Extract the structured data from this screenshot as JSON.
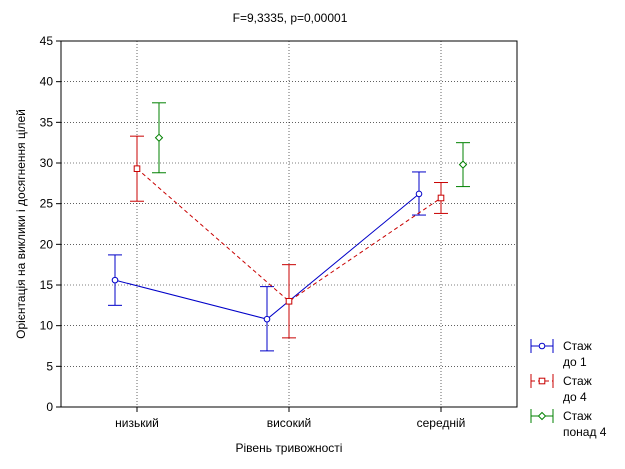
{
  "chart_data": {
    "type": "line",
    "title": "F=9,3335, p=0,00001",
    "xlabel": "Рівень тривожності",
    "ylabel": "Орієнтація на виклики і досягнення цілей",
    "ylim": [
      0,
      45
    ],
    "yticks": [
      "0",
      "5",
      "10",
      "15",
      "20",
      "25",
      "30",
      "35",
      "40",
      "45"
    ],
    "categories": [
      "низький",
      "високий",
      "середній"
    ],
    "legend_position": "right",
    "series": [
      {
        "name": "Стаж до 1",
        "legend_lines": [
          "Стаж",
          "до 1"
        ],
        "color": "#0000c8",
        "marker": "circle",
        "dashed": false,
        "values": [
          15.6,
          10.8,
          26.2
        ],
        "lower": [
          12.5,
          6.9,
          23.6
        ],
        "upper": [
          18.7,
          14.8,
          28.9
        ]
      },
      {
        "name": "Стаж до 4",
        "legend_lines": [
          "Стаж",
          "до 4"
        ],
        "color": "#c80000",
        "marker": "square",
        "dashed": true,
        "values": [
          29.3,
          13.0,
          25.7
        ],
        "lower": [
          25.3,
          8.5,
          23.8
        ],
        "upper": [
          33.3,
          17.5,
          27.6
        ]
      },
      {
        "name": "Стаж понад 4",
        "legend_lines": [
          "Стаж",
          "понад 4"
        ],
        "color": "#008000",
        "marker": "diamond",
        "dashed": false,
        "connected": false,
        "values": [
          33.1,
          null,
          29.8
        ],
        "lower": [
          28.8,
          null,
          27.1
        ],
        "upper": [
          37.4,
          null,
          32.5
        ]
      }
    ]
  }
}
